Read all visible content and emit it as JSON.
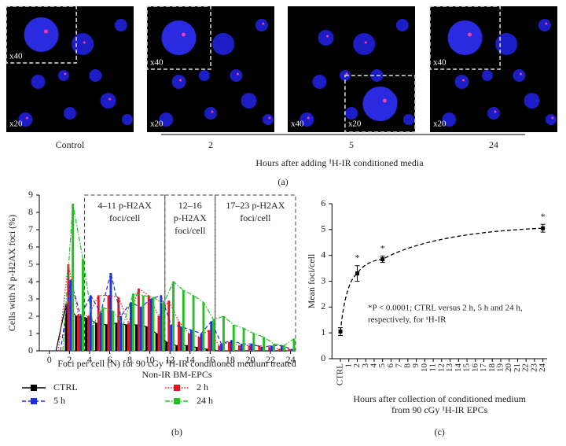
{
  "panel_a": {
    "images": [
      {
        "caption": "Control",
        "labels": [
          "x40",
          "x20"
        ]
      },
      {
        "caption": "2",
        "labels": [
          "x40",
          "x20"
        ]
      },
      {
        "caption": "5",
        "labels": [
          "x40",
          "x20"
        ]
      },
      {
        "caption": "24",
        "labels": [
          "x40",
          "x20"
        ]
      }
    ],
    "axis_label": "Hours after adding ¹H-IR conditioned media",
    "panel_label": "(a)"
  },
  "chart_data": [
    {
      "type": "bar",
      "panel_label": "(b)",
      "y_label": "Cells with N p-H2AX foci (%)",
      "x_label": [
        "Foci per cell (N) for 90 cGy ¹H-IR conditioned medium treated",
        "Non-IR BM-EPCs"
      ],
      "annotations": [
        [
          "4–11 p-H2AX",
          "foci/cell"
        ],
        [
          "12–16",
          "p-H2AX",
          "foci/cell"
        ],
        [
          "17–23 p-H2AX",
          "foci/cell"
        ]
      ],
      "x": [
        1,
        2,
        3,
        4,
        5,
        6,
        7,
        8,
        9,
        10,
        11,
        12,
        13,
        14,
        15,
        16,
        17,
        18,
        19,
        20,
        21,
        22,
        23,
        24
      ],
      "series": [
        {
          "name": "CTRL",
          "color": "#000000",
          "line_style": "solid",
          "values": [
            0,
            2.7,
            2.0,
            1.9,
            1.6,
            1.5,
            1.6,
            1.5,
            1.5,
            1.4,
            1.0,
            0.5,
            0.3,
            0.3,
            0.2,
            0.1,
            0,
            0,
            0,
            0,
            0,
            0,
            0,
            0
          ]
        },
        {
          "name": "2 h",
          "color": "#e8141b",
          "line_style": "dotted",
          "values": [
            0,
            5.0,
            2.1,
            2.0,
            3.2,
            3.2,
            3.1,
            1.6,
            3.6,
            3.2,
            2.0,
            2.9,
            1.7,
            1.0,
            0.8,
            1.2,
            0.3,
            0.5,
            0.3,
            0.3,
            0.3,
            0.2,
            0.1,
            0.1
          ]
        },
        {
          "name": "5 h",
          "color": "#1f2fe0",
          "line_style": "dashed",
          "values": [
            0,
            4.1,
            2.0,
            3.2,
            2.2,
            4.5,
            2.0,
            2.8,
            2.5,
            3.0,
            3.2,
            1.5,
            1.4,
            1.2,
            1.0,
            1.7,
            0.4,
            0.6,
            0.4,
            0.4,
            0.2,
            0.3,
            0.3,
            0.1
          ]
        },
        {
          "name": "24 h",
          "color": "#22c022",
          "line_style": "dashdot",
          "values": [
            0,
            8.5,
            5.3,
            1.5,
            2.5,
            2.3,
            1.5,
            3.3,
            3.2,
            3.1,
            2.7,
            4.0,
            3.5,
            3.2,
            2.8,
            1.8,
            2.0,
            1.5,
            1.3,
            1.0,
            0.8,
            0.4,
            0.3,
            0.7
          ]
        }
      ],
      "xlim": [
        -1,
        24.5
      ],
      "xticks": [
        0,
        2,
        4,
        6,
        8,
        10,
        12,
        14,
        16,
        18,
        20,
        22,
        24
      ],
      "ylim": [
        0,
        9
      ],
      "yticks": [
        0,
        1,
        2,
        3,
        4,
        5,
        6,
        7,
        8,
        9
      ]
    },
    {
      "type": "line",
      "panel_label": "(c)",
      "y_label": "Mean foci/cell",
      "x_label": [
        "Hours after collection of conditioned medium",
        "from 90 cGy ¹H-IR EPCs"
      ],
      "annotation": [
        "*P < 0.0001; CTRL versus 2 h, 5 h and 24 h,",
        "respectively, for ¹H-IR"
      ],
      "point_labels": [
        "*",
        "*",
        "*"
      ],
      "x": [
        0,
        2,
        5,
        24
      ],
      "series": [
        {
          "color": "#000000",
          "values": [
            1.05,
            3.3,
            3.85,
            5.05
          ],
          "errors": [
            0.15,
            0.3,
            0.12,
            0.15
          ]
        }
      ],
      "xlim": [
        -1,
        24.5
      ],
      "xticks": [
        {
          "value": 0,
          "label": "CTRL"
        },
        1,
        2,
        3,
        4,
        5,
        6,
        7,
        8,
        9,
        10,
        11,
        12,
        13,
        14,
        15,
        16,
        17,
        18,
        19,
        20,
        21,
        22,
        23,
        24
      ],
      "ylim": [
        0,
        6
      ],
      "yticks": [
        0,
        1,
        2,
        3,
        4,
        5,
        6
      ]
    }
  ]
}
